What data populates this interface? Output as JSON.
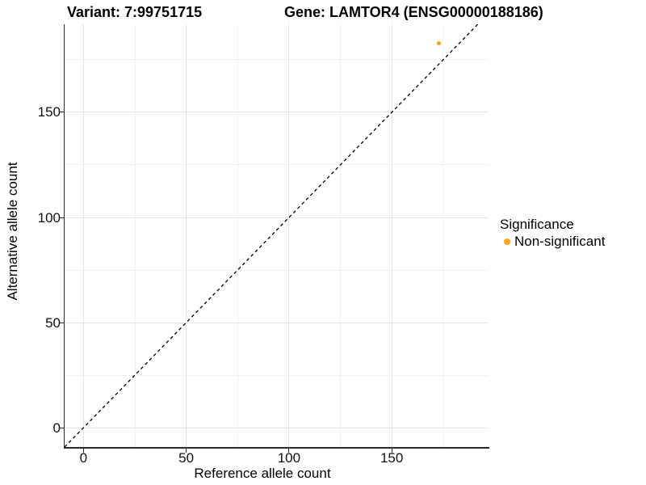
{
  "titles": {
    "variant": "Variant: 7:99751715",
    "gene": "Gene: LAMTOR4 (ENSG00000188186)"
  },
  "axes": {
    "x": {
      "label": "Reference allele count",
      "ticks": [
        "0",
        "50",
        "100",
        "150"
      ]
    },
    "y": {
      "label": "Alternative allele count",
      "ticks": [
        "0",
        "50",
        "100",
        "150"
      ]
    }
  },
  "legend": {
    "title": "Significance",
    "items": [
      {
        "label": "Non-significant",
        "color": "#FFA319",
        "marker": "circle-icon"
      }
    ]
  },
  "colors": {
    "point": "#FFA319",
    "axis_line": "#2a2a2a",
    "grid_major": "#e4e4e4",
    "grid_minor": "#f1f1f1",
    "reference_line": "#000000",
    "background": "#ffffff"
  },
  "chart_data": {
    "type": "scatter",
    "title": "Variant: 7:99751715 | Gene: LAMTOR4 (ENSG00000188186)",
    "xlabel": "Reference allele count",
    "ylabel": "Alternative allele count",
    "xlim": [
      -9.2,
      197.1
    ],
    "ylim": [
      -9.2,
      191.9
    ],
    "x_ticks": [
      0,
      50,
      100,
      150
    ],
    "y_ticks": [
      0,
      50,
      100,
      150
    ],
    "minor_tick_offset": 25,
    "grid": true,
    "legend_position": "right",
    "series": [
      {
        "name": "Non-significant",
        "color": "#FFA319",
        "points": [
          [
            173,
            183
          ]
        ]
      }
    ],
    "reference_line": {
      "type": "identity y = x",
      "style": "dashed",
      "color": "#000000"
    }
  }
}
